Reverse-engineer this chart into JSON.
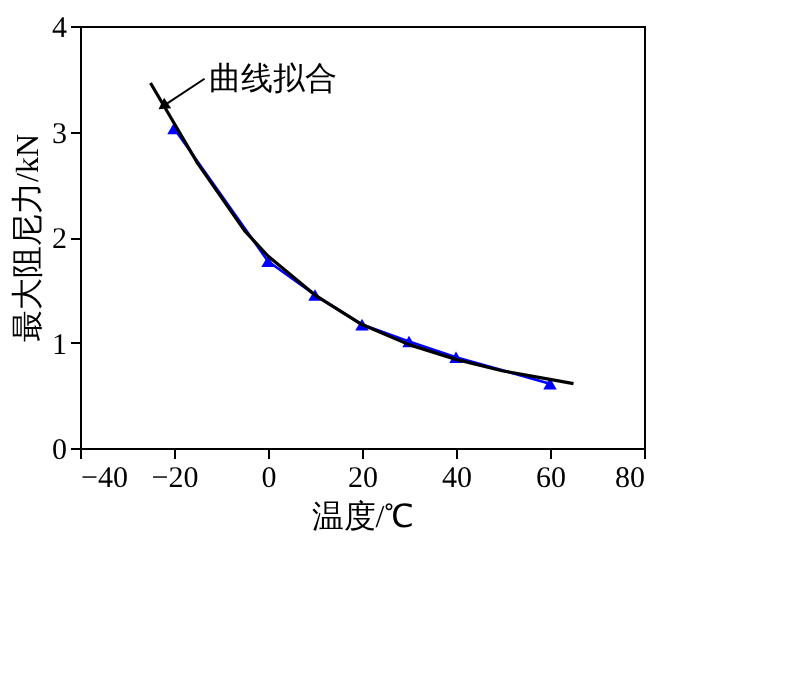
{
  "chart_data": {
    "type": "line",
    "xlabel": "温度/℃",
    "ylabel": "最大阻尼力/kN",
    "xlim": [
      -40,
      80
    ],
    "xticks": [
      -40,
      -20,
      0,
      20,
      40,
      60,
      80
    ],
    "ylim": [
      0,
      4
    ],
    "yticks": [
      0,
      1,
      2,
      3,
      4
    ],
    "grid": false,
    "series": [
      {
        "color": "#0000ff",
        "marker": "triangle",
        "x": [
          -20,
          0,
          10,
          20,
          30,
          40,
          60
        ],
        "values": [
          3.03,
          1.77,
          1.45,
          1.17,
          1.01,
          0.86,
          0.61
        ]
      },
      {
        "color": "#000000",
        "marker": "none",
        "x": [
          -25,
          -20,
          -15,
          -10,
          -5,
          0,
          10,
          20,
          30,
          40,
          50,
          60,
          65
        ],
        "values": [
          3.46,
          3.08,
          2.7,
          2.38,
          2.06,
          1.82,
          1.45,
          1.17,
          0.98,
          0.84,
          0.73,
          0.65,
          0.61
        ]
      }
    ],
    "annotations": [
      {
        "text": "曲线拟合",
        "x": -22,
        "y": 3.25
      }
    ]
  }
}
